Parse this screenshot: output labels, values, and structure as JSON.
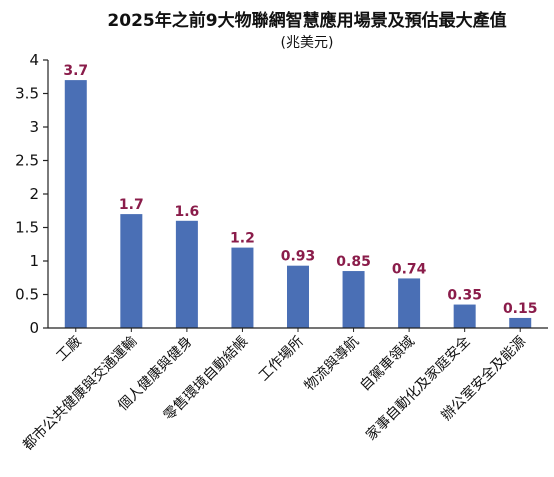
{
  "chart_data": {
    "type": "bar",
    "title": "2025年之前9大物聯網智慧應用場景及預估最大產值",
    "subtitle": "(兆美元)",
    "xlabel": "",
    "ylabel": "",
    "categories": [
      "工廠",
      "都市公共健康與交通運輸",
      "個人健康與健身",
      "零售環境自動結帳",
      "工作場所",
      "物流與導航",
      "自駕車領域",
      "家事自動化及家庭安全",
      "辦公室安全及能源"
    ],
    "values": [
      3.7,
      1.7,
      1.6,
      1.2,
      0.93,
      0.85,
      0.74,
      0.35,
      0.15
    ],
    "value_labels": [
      "3.7",
      "1.7",
      "1.6",
      "1.2",
      "0.93",
      "0.85",
      "0.74",
      "0.35",
      "0.15"
    ],
    "yticks": [
      "0",
      "0.5",
      "1",
      "1.5",
      "2",
      "2.5",
      "3",
      "3.5",
      "4"
    ],
    "ylim": [
      0,
      4
    ],
    "grid": false,
    "legend": "none",
    "colors": {
      "bar": "#4a6fb5",
      "label": "#8a1c4a",
      "axis": "#222222"
    }
  }
}
